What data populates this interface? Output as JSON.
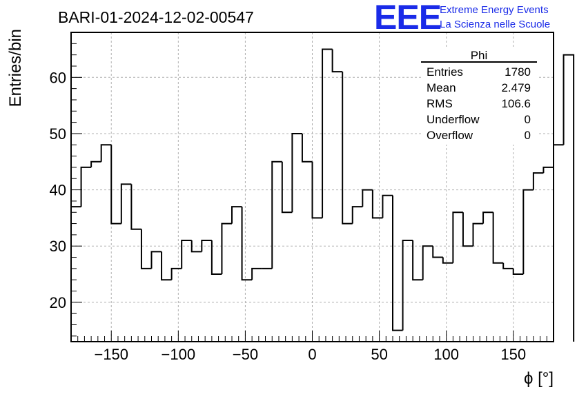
{
  "chart_data": {
    "type": "bar",
    "title": "BARI-01-2024-12-02-00547",
    "xlabel": "ϕ [°]",
    "ylabel": "Entries/bin",
    "xlim": [
      -180,
      180
    ],
    "ylim": [
      13,
      68
    ],
    "grid": true,
    "xticks": [
      -150,
      -100,
      -50,
      0,
      50,
      100,
      150
    ],
    "xtick_labels": [
      "−150",
      "−100",
      "−50",
      "0",
      "50",
      "100",
      "150"
    ],
    "yticks": [
      20,
      30,
      40,
      50,
      60
    ],
    "ytick_labels": [
      "20",
      "30",
      "40",
      "50",
      "60"
    ],
    "bin_edges_start": -180,
    "bin_width": 7.5,
    "values": [
      37,
      44,
      45,
      48,
      34,
      41,
      33,
      26,
      29,
      24,
      26,
      31,
      29,
      31,
      25,
      34,
      37,
      24,
      26,
      26,
      45,
      36,
      50,
      45,
      35,
      65,
      61,
      34,
      37,
      40,
      35,
      39,
      15,
      31,
      24,
      30,
      28,
      27,
      36,
      30,
      34,
      36,
      27,
      26,
      25,
      40,
      43,
      44,
      48,
      64
    ]
  },
  "logo": {
    "mark": "EEE",
    "line1": "Extreme Energy Events",
    "line2": "La Scienza nelle Scuole"
  },
  "stats_box": {
    "title": "Phi",
    "rows": [
      {
        "label": "Entries",
        "value": "1780"
      },
      {
        "label": "Mean",
        "value": "2.479"
      },
      {
        "label": "RMS",
        "value": "106.6"
      },
      {
        "label": "Underflow",
        "value": "0"
      },
      {
        "label": "Overflow",
        "value": "0"
      }
    ]
  },
  "colors": {
    "histogram_line": "#000000",
    "logo": "#1a2be8",
    "grid": "#b0b0b0"
  }
}
